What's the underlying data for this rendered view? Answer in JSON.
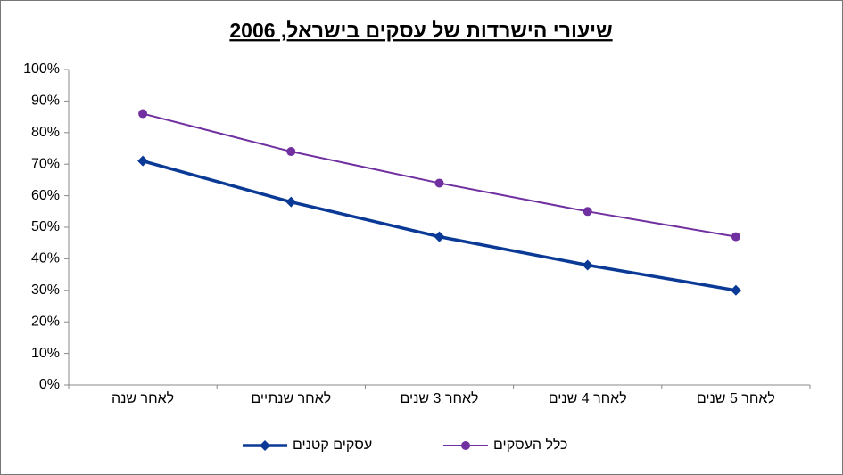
{
  "chart_data": {
    "type": "line",
    "title": "שיעורי הישרדות של עסקים בישראל, 2006",
    "categories": [
      "לאחר שנה",
      "לאחר שנתיים",
      "לאחר 3 שנים",
      "לאחר 4 שנים",
      "לאחר 5 שנים"
    ],
    "series": [
      {
        "name": "עסקים קטנים",
        "color": "#0a3a96",
        "marker": "diamond",
        "values": [
          71,
          58,
          47,
          38,
          30
        ]
      },
      {
        "name": "כלל העסקים",
        "color": "#7030a0",
        "marker": "circle",
        "values": [
          86,
          74,
          64,
          55,
          47
        ]
      }
    ],
    "ylim": [
      0,
      100
    ],
    "yticks": [
      {
        "value": 0,
        "label": "0%"
      },
      {
        "value": 10,
        "label": "10%"
      },
      {
        "value": 20,
        "label": "20%"
      },
      {
        "value": 30,
        "label": "30%"
      },
      {
        "value": 40,
        "label": "40%"
      },
      {
        "value": 50,
        "label": "50%"
      },
      {
        "value": 60,
        "label": "60%"
      },
      {
        "value": 70,
        "label": "70%"
      },
      {
        "value": 80,
        "label": "80%"
      },
      {
        "value": 90,
        "label": "90%"
      },
      {
        "value": 100,
        "label": "100%"
      }
    ],
    "grid": false,
    "legend": "bottom"
  }
}
